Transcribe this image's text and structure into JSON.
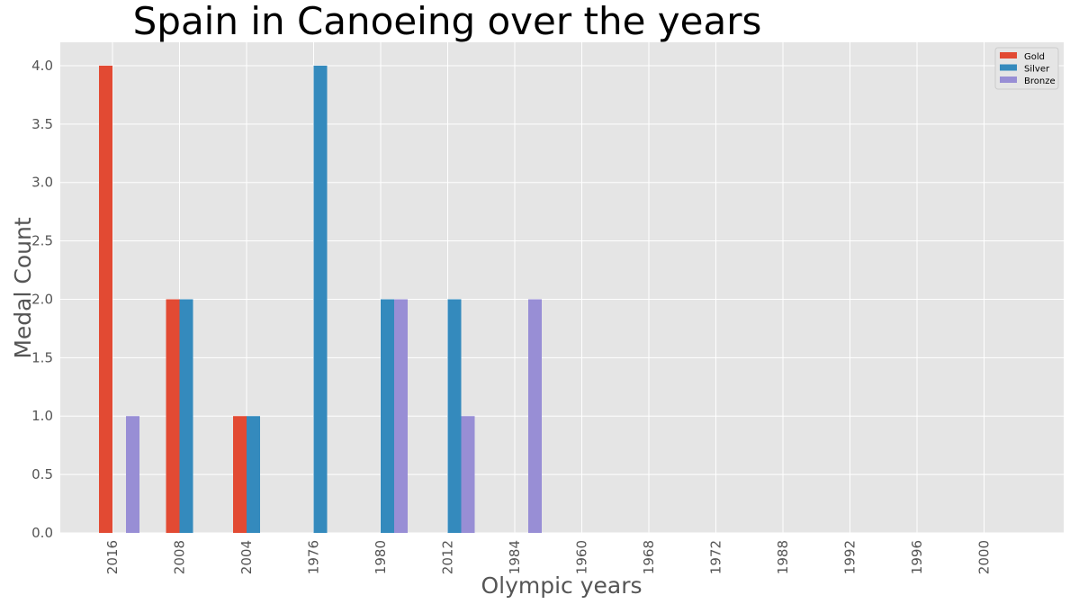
{
  "chart_data": {
    "type": "bar",
    "title": "Spain in Canoeing over the years",
    "xlabel": "Olympic years",
    "ylabel": "Medal Count",
    "categories": [
      "2016",
      "2008",
      "2004",
      "1976",
      "1980",
      "2012",
      "1984",
      "1960",
      "1968",
      "1972",
      "1988",
      "1992",
      "1996",
      "2000"
    ],
    "series": [
      {
        "name": "Gold",
        "color": "#e24a33",
        "values": [
          4,
          2,
          1,
          0,
          0,
          0,
          0,
          0,
          0,
          0,
          0,
          0,
          0,
          0
        ]
      },
      {
        "name": "Silver",
        "color": "#348abd",
        "values": [
          0,
          2,
          1,
          4,
          2,
          2,
          0,
          0,
          0,
          0,
          0,
          0,
          0,
          0
        ]
      },
      {
        "name": "Bronze",
        "color": "#988ed5",
        "values": [
          1,
          0,
          0,
          0,
          2,
          1,
          2,
          0,
          0,
          0,
          0,
          0,
          0,
          0
        ]
      }
    ],
    "ylim": [
      0,
      4.2
    ],
    "yticks": [
      "0.0",
      "0.5",
      "1.0",
      "1.5",
      "2.0",
      "2.5",
      "3.0",
      "3.5",
      "4.0"
    ],
    "grid": true,
    "legend": "top-right",
    "style": {
      "background": "#e5e5e5",
      "grid": "#ffffff",
      "text": "#555555"
    }
  }
}
